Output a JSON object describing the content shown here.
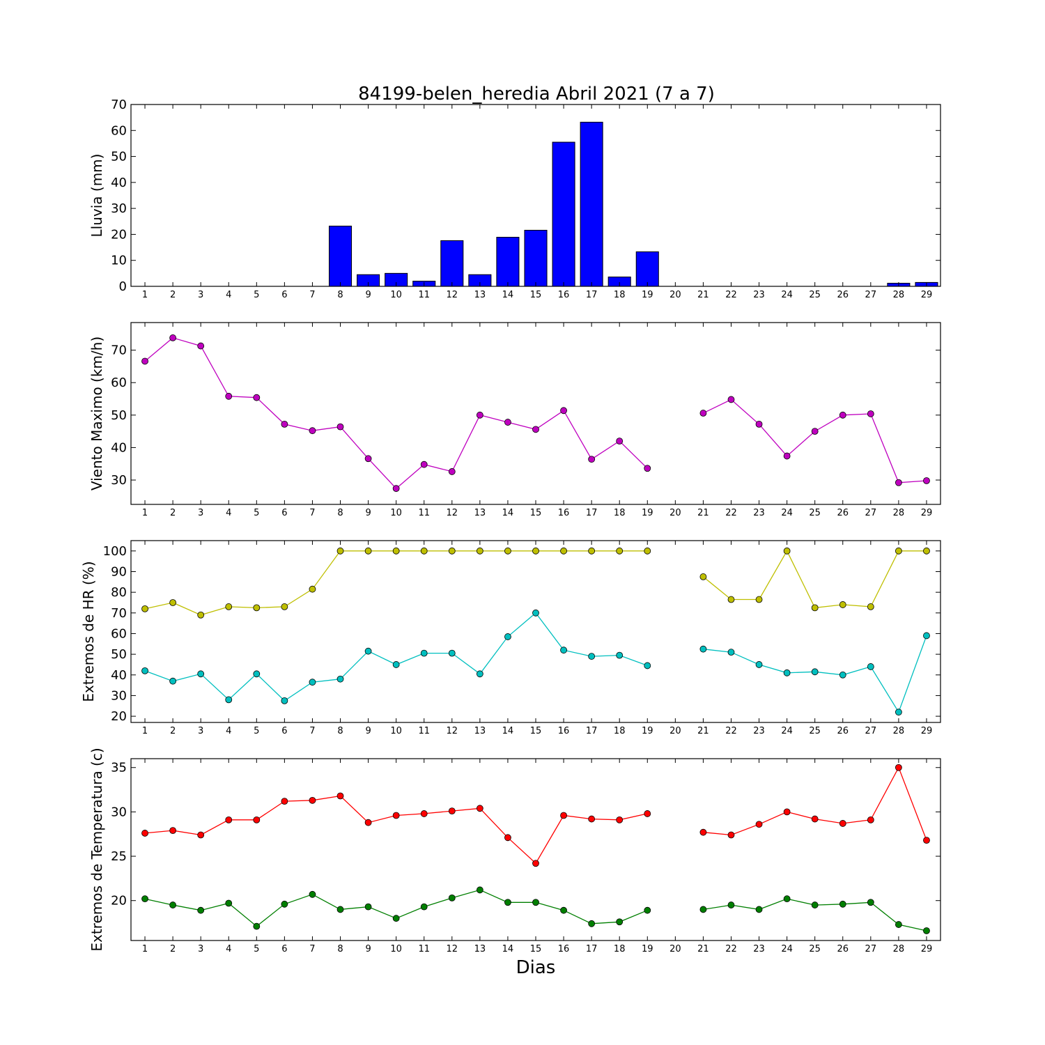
{
  "figure": {
    "title": "84199-belen_heredia Abril 2021  (7 a 7)",
    "xlabel": "Dias"
  },
  "chart_data": [
    {
      "type": "bar",
      "ylabel": "Lluvia (mm)",
      "ylim": [
        0,
        70
      ],
      "yticks": [
        0,
        10,
        20,
        30,
        40,
        50,
        60,
        70
      ],
      "xticks": [
        1,
        2,
        3,
        4,
        5,
        6,
        7,
        8,
        9,
        10,
        11,
        12,
        13,
        14,
        15,
        16,
        17,
        18,
        19,
        20,
        21,
        22,
        23,
        24,
        25,
        26,
        27,
        28,
        29
      ],
      "bar_color": "#0000ff",
      "x": [
        1,
        2,
        3,
        4,
        5,
        6,
        7,
        8,
        9,
        10,
        11,
        12,
        13,
        14,
        15,
        16,
        17,
        18,
        19,
        20,
        21,
        22,
        23,
        24,
        25,
        26,
        27,
        28,
        29
      ],
      "values": [
        0,
        0,
        0,
        0,
        0,
        0,
        0,
        23.2,
        4.5,
        5.0,
        2.0,
        17.6,
        4.5,
        18.9,
        21.6,
        55.5,
        63.2,
        3.6,
        13.3,
        0,
        0,
        0,
        0,
        0,
        0,
        0,
        0,
        1.2,
        1.5
      ]
    },
    {
      "type": "line",
      "ylabel": "Viento Maximo (km/h)",
      "ylim": [
        22.5,
        78.5
      ],
      "yticks": [
        30,
        40,
        50,
        60,
        70
      ],
      "xticks": [
        1,
        2,
        3,
        4,
        5,
        6,
        7,
        8,
        9,
        10,
        11,
        12,
        13,
        14,
        15,
        16,
        17,
        18,
        19,
        20,
        21,
        22,
        23,
        24,
        25,
        26,
        27,
        28,
        29
      ],
      "x": [
        1,
        2,
        3,
        4,
        5,
        6,
        7,
        8,
        9,
        10,
        11,
        12,
        13,
        14,
        15,
        16,
        17,
        18,
        19,
        20,
        21,
        22,
        23,
        24,
        25,
        26,
        27,
        28,
        29
      ],
      "series": [
        {
          "color": "#bf00bf",
          "values": [
            66.6,
            73.8,
            71.3,
            55.8,
            55.4,
            47.2,
            45.2,
            46.4,
            36.6,
            27.4,
            34.8,
            32.6,
            50.0,
            47.8,
            45.6,
            51.4,
            36.4,
            42.0,
            33.6,
            null,
            50.6,
            54.8,
            47.2,
            37.4,
            45.0,
            50.0,
            50.4,
            29.2,
            29.8
          ]
        }
      ]
    },
    {
      "type": "line",
      "ylabel": "Extremos de HR (%)",
      "ylim": [
        17,
        105
      ],
      "yticks": [
        20,
        30,
        40,
        50,
        60,
        70,
        80,
        90,
        100
      ],
      "xticks": [
        1,
        2,
        3,
        4,
        5,
        6,
        7,
        8,
        9,
        10,
        11,
        12,
        13,
        14,
        15,
        16,
        17,
        18,
        19,
        20,
        21,
        22,
        23,
        24,
        25,
        26,
        27,
        28,
        29
      ],
      "x": [
        1,
        2,
        3,
        4,
        5,
        6,
        7,
        8,
        9,
        10,
        11,
        12,
        13,
        14,
        15,
        16,
        17,
        18,
        19,
        20,
        21,
        22,
        23,
        24,
        25,
        26,
        27,
        28,
        29
      ],
      "series": [
        {
          "color": "#bfbf00",
          "values": [
            72,
            75,
            69,
            73,
            72.5,
            73,
            81.5,
            100,
            100,
            100,
            100,
            100,
            100,
            100,
            100,
            100,
            100,
            100,
            100,
            null,
            87.5,
            76.5,
            76.5,
            100,
            72.5,
            74,
            73,
            100,
            100
          ]
        },
        {
          "color": "#00bfbf",
          "values": [
            42,
            37,
            40.5,
            28,
            40.5,
            27.5,
            36.5,
            38,
            51.5,
            45,
            50.5,
            50.5,
            40.5,
            58.5,
            70,
            52,
            49,
            49.5,
            44.5,
            null,
            52.5,
            51,
            45,
            41,
            41.5,
            40,
            44,
            22,
            59
          ]
        }
      ]
    },
    {
      "type": "line",
      "ylabel": "Extremos de Temperatura (c)",
      "ylim": [
        15.5,
        36
      ],
      "yticks": [
        20,
        25,
        30,
        35
      ],
      "xticks": [
        1,
        2,
        3,
        4,
        5,
        6,
        7,
        8,
        9,
        10,
        11,
        12,
        13,
        14,
        15,
        16,
        17,
        18,
        19,
        20,
        21,
        22,
        23,
        24,
        25,
        26,
        27,
        28,
        29
      ],
      "x": [
        1,
        2,
        3,
        4,
        5,
        6,
        7,
        8,
        9,
        10,
        11,
        12,
        13,
        14,
        15,
        16,
        17,
        18,
        19,
        20,
        21,
        22,
        23,
        24,
        25,
        26,
        27,
        28,
        29
      ],
      "series": [
        {
          "color": "#ff0000",
          "values": [
            27.6,
            27.9,
            27.4,
            29.1,
            29.1,
            31.2,
            31.3,
            31.8,
            28.8,
            29.6,
            29.8,
            30.1,
            30.4,
            27.1,
            24.2,
            29.6,
            29.2,
            29.1,
            29.8,
            null,
            27.7,
            27.4,
            28.6,
            30.0,
            29.2,
            28.7,
            29.1,
            35.0,
            26.8
          ]
        },
        {
          "color": "#007f00",
          "values": [
            20.2,
            19.5,
            18.9,
            19.7,
            17.1,
            19.6,
            20.7,
            19.0,
            19.3,
            18.0,
            19.3,
            20.3,
            21.2,
            19.8,
            19.8,
            18.9,
            17.4,
            17.6,
            18.9,
            null,
            19.0,
            19.5,
            19.0,
            20.2,
            19.5,
            19.6,
            19.8,
            17.3,
            16.6
          ]
        }
      ]
    }
  ]
}
